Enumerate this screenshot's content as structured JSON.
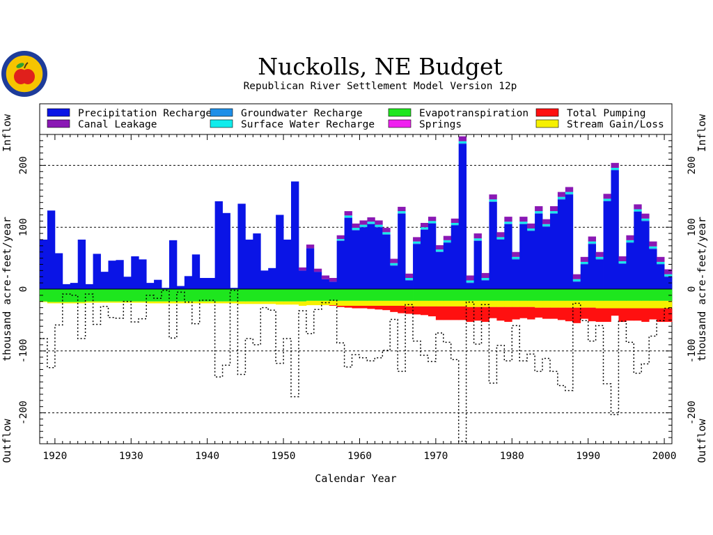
{
  "title": "Nuckolls, NE Budget",
  "subtitle": "Republican River Settlement Model Version 12p",
  "logo": {
    "icon": "apple-seal-icon",
    "color_ring": "#1e3c9a",
    "color_fill": "#f6c400",
    "color_apple": "#e0201c"
  },
  "axis": {
    "xlabel": "Calendar Year",
    "ylabel_left": "thousand  acre-feet/year",
    "ylabel_right": "thousand  acre-feet/year",
    "inflow": "Inflow",
    "outflow": "Outflow",
    "x_ticks": [
      "1920",
      "1930",
      "1940",
      "1950",
      "1960",
      "1970",
      "1980",
      "1990",
      "2000"
    ],
    "y_ticks": [
      "-200",
      "-100",
      "0",
      "100",
      "200"
    ]
  },
  "legend": [
    {
      "label": "Precipitation Recharge",
      "color": "#0a14e6"
    },
    {
      "label": "Groundwater Recharge",
      "color": "#1e8fe8"
    },
    {
      "label": "Evapotranspiration",
      "color": "#1ee61e"
    },
    {
      "label": "Total Pumping",
      "color": "#ff1010"
    },
    {
      "label": "Canal Leakage",
      "color": "#8a18b4"
    },
    {
      "label": "Surface Water Recharge",
      "color": "#10ecec"
    },
    {
      "label": "Springs",
      "color": "#f020f0"
    },
    {
      "label": "Stream Gain/Loss",
      "color": "#f6f000"
    }
  ],
  "chart_data": {
    "type": "area",
    "title": "Nuckolls, NE Budget",
    "subtitle": "Republican River Settlement Model Version 12p",
    "xlabel": "Calendar Year",
    "ylabel": "thousand  acre-feet/year",
    "xlim": [
      1918,
      2001
    ],
    "ylim": [
      -250,
      250
    ],
    "grid": "horizontal dashed at -200, -100, 100, 200",
    "legend_position": "top",
    "x": [
      1918,
      1919,
      1920,
      1921,
      1922,
      1923,
      1924,
      1925,
      1926,
      1927,
      1928,
      1929,
      1930,
      1931,
      1932,
      1933,
      1934,
      1935,
      1936,
      1937,
      1938,
      1939,
      1940,
      1941,
      1942,
      1943,
      1944,
      1945,
      1946,
      1947,
      1948,
      1949,
      1950,
      1951,
      1952,
      1953,
      1954,
      1955,
      1956,
      1957,
      1958,
      1959,
      1960,
      1961,
      1962,
      1963,
      1964,
      1965,
      1966,
      1967,
      1968,
      1969,
      1970,
      1971,
      1972,
      1973,
      1974,
      1975,
      1976,
      1977,
      1978,
      1979,
      1980,
      1981,
      1982,
      1983,
      1984,
      1985,
      1986,
      1987,
      1988,
      1989,
      1990,
      1991,
      1992,
      1993,
      1994,
      1995,
      1996,
      1997,
      1998,
      1999,
      2000
    ],
    "series": [
      {
        "name": "Precipitation Recharge",
        "color": "#0a14e6",
        "values": [
          80,
          127,
          58,
          8,
          10,
          80,
          8,
          57,
          28,
          46,
          47,
          20,
          53,
          48,
          10,
          15,
          2,
          79,
          5,
          21,
          56,
          18,
          18,
          142,
          123,
          2,
          138,
          80,
          90,
          30,
          34,
          120,
          80,
          174,
          30,
          66,
          28,
          16,
          12,
          78,
          115,
          95,
          100,
          105,
          100,
          88,
          38,
          122,
          14,
          73,
          96,
          106,
          60,
          75,
          103,
          235,
          10,
          78,
          14,
          141,
          80,
          105,
          48,
          105,
          94,
          122,
          101,
          122,
          145,
          153,
          12,
          40,
          73,
          48,
          142,
          192,
          41,
          75,
          125,
          110,
          65,
          40,
          20
        ]
      },
      {
        "name": "Groundwater Recharge",
        "color": "#1e8fe8",
        "values": [
          0,
          0,
          0,
          0,
          0,
          0,
          0,
          0,
          0,
          0,
          0,
          0,
          0,
          0,
          0,
          0,
          0,
          0,
          0,
          0,
          0,
          0,
          0,
          0,
          0,
          0,
          0,
          0,
          0,
          0,
          0,
          0,
          0,
          0,
          0,
          0,
          0,
          0,
          0,
          1,
          1,
          1,
          1,
          1,
          1,
          1,
          1,
          1,
          1,
          1,
          1,
          1,
          1,
          1,
          1,
          1,
          1,
          1,
          1,
          1,
          1,
          1,
          1,
          1,
          1,
          1,
          1,
          1,
          1,
          1,
          1,
          1,
          1,
          1,
          1,
          1,
          1,
          1,
          1,
          1,
          1,
          1,
          1
        ]
      },
      {
        "name": "Surface Water Recharge",
        "color": "#10ecec",
        "values": [
          0,
          0,
          0,
          0,
          0,
          0,
          0,
          0,
          0,
          0,
          0,
          0,
          0,
          0,
          0,
          0,
          0,
          0,
          0,
          0,
          0,
          0,
          0,
          0,
          0,
          0,
          0,
          0,
          0,
          0,
          0,
          0,
          0,
          0,
          0,
          0,
          0,
          0,
          0,
          2,
          3,
          3,
          3,
          3,
          3,
          3,
          3,
          3,
          3,
          3,
          3,
          3,
          3,
          3,
          3,
          3,
          3,
          3,
          3,
          3,
          3,
          3,
          3,
          3,
          3,
          3,
          3,
          3,
          3,
          3,
          3,
          3,
          3,
          3,
          3,
          3,
          3,
          3,
          3,
          3,
          3,
          3,
          3
        ]
      },
      {
        "name": "Springs",
        "color": "#f020f0",
        "values": [
          0,
          0,
          0,
          0,
          0,
          0,
          0,
          0,
          0,
          0,
          0,
          0,
          0,
          0,
          0,
          0,
          0,
          0,
          0,
          0,
          0,
          0,
          0,
          0,
          0,
          0,
          0,
          0,
          0,
          0,
          0,
          0,
          0,
          0,
          0,
          0,
          0,
          0,
          0,
          0,
          0,
          0,
          0,
          0,
          0,
          0,
          0,
          0,
          0,
          0,
          0,
          0,
          0,
          0,
          0,
          0,
          0,
          0,
          0,
          0,
          0,
          0,
          0,
          0,
          0,
          0,
          0,
          0,
          0,
          0,
          0,
          0,
          0,
          0,
          0,
          0,
          0,
          0,
          0,
          0,
          0,
          0,
          0
        ]
      },
      {
        "name": "Canal Leakage",
        "color": "#8a18b4",
        "values": [
          0,
          0,
          0,
          0,
          0,
          0,
          0,
          0,
          0,
          0,
          0,
          0,
          0,
          0,
          0,
          0,
          0,
          0,
          0,
          0,
          0,
          0,
          0,
          0,
          0,
          0,
          0,
          0,
          0,
          0,
          0,
          0,
          0,
          0,
          5,
          6,
          5,
          6,
          6,
          6,
          7,
          7,
          7,
          7,
          7,
          7,
          7,
          7,
          7,
          7,
          7,
          7,
          7,
          7,
          7,
          8,
          8,
          8,
          8,
          8,
          8,
          8,
          8,
          8,
          8,
          8,
          8,
          8,
          8,
          8,
          8,
          8,
          8,
          8,
          8,
          8,
          8,
          8,
          8,
          8,
          8,
          8,
          8
        ]
      },
      {
        "name": "Evapotranspiration",
        "color": "#1ee61e",
        "values": [
          -20,
          -21,
          -21,
          -21,
          -21,
          -21,
          -20,
          -20,
          -20,
          -20,
          -20,
          -20,
          -20,
          -20,
          -20,
          -20,
          -20,
          -20,
          -20,
          -20,
          -20,
          -20,
          -20,
          -20,
          -20,
          -20,
          -20,
          -20,
          -20,
          -20,
          -20,
          -20,
          -20,
          -20,
          -20,
          -19,
          -19,
          -19,
          -19,
          -19,
          -19,
          -19,
          -19,
          -19,
          -19,
          -19,
          -19,
          -19,
          -19,
          -19,
          -19,
          -19,
          -19,
          -19,
          -19,
          -19,
          -19,
          -19,
          -19,
          -19,
          -19,
          -19,
          -19,
          -19,
          -19,
          -19,
          -19,
          -19,
          -19,
          -19,
          -19,
          -19,
          -19,
          -19,
          -19,
          -19,
          -19,
          -19,
          -19,
          -19,
          -19,
          -19,
          -19
        ]
      },
      {
        "name": "Stream Gain/Loss",
        "color": "#f6f000",
        "values": [
          -1,
          -2,
          -2,
          -2,
          -2,
          -2,
          -2,
          -2,
          -2,
          -2,
          -2,
          -2,
          -2,
          -2,
          -3,
          -3,
          -3,
          -3,
          -3,
          -3,
          -3,
          -3,
          -3,
          -3,
          -3,
          -3,
          -4,
          -4,
          -4,
          -4,
          -4,
          -5,
          -5,
          -5,
          -7,
          -7,
          -7,
          -7,
          -7,
          -8,
          -8,
          -8,
          -8,
          -8,
          -8,
          -8,
          -8,
          -8,
          -9,
          -9,
          -9,
          -9,
          -9,
          -9,
          -9,
          -9,
          -10,
          -10,
          -10,
          -10,
          -10,
          -10,
          -10,
          -10,
          -10,
          -11,
          -11,
          -11,
          -11,
          -11,
          -11,
          -11,
          -11,
          -12,
          -12,
          -12,
          -12,
          -12,
          -12,
          -12,
          -12,
          -12,
          -12
        ]
      },
      {
        "name": "Total Pumping",
        "color": "#ff1010",
        "values": [
          0,
          0,
          0,
          0,
          0,
          0,
          0,
          0,
          0,
          0,
          0,
          0,
          0,
          0,
          0,
          0,
          0,
          0,
          0,
          0,
          0,
          0,
          0,
          0,
          0,
          0,
          0,
          0,
          0,
          0,
          0,
          0,
          0,
          0,
          0,
          0,
          0,
          0,
          -1,
          -2,
          -3,
          -4,
          -4,
          -5,
          -6,
          -7,
          -10,
          -12,
          -12,
          -13,
          -14,
          -16,
          -22,
          -22,
          -22,
          -22,
          -24,
          -22,
          -24,
          -18,
          -22,
          -24,
          -20,
          -18,
          -20,
          -16,
          -18,
          -18,
          -20,
          -22,
          -25,
          -18,
          -22,
          -22,
          -22,
          -12,
          -22,
          -20,
          -20,
          -22,
          -18,
          -22,
          -22
        ]
      },
      {
        "name": "Total outflow (dotted)",
        "color": "#000000",
        "values": [
          -80,
          -127,
          -58,
          -8,
          -10,
          -80,
          -8,
          -57,
          -28,
          -46,
          -47,
          -20,
          -53,
          -48,
          -10,
          -15,
          -2,
          -79,
          -5,
          -21,
          -56,
          -18,
          -18,
          -142,
          -123,
          -2,
          -138,
          -80,
          -90,
          -30,
          -34,
          -120,
          -80,
          -174,
          -35,
          -72,
          -33,
          -22,
          -18,
          -87,
          -126,
          -106,
          -111,
          -116,
          -111,
          -99,
          -49,
          -133,
          -25,
          -84,
          -107,
          -117,
          -71,
          -86,
          -114,
          -246,
          -21,
          -89,
          -25,
          -152,
          -91,
          -116,
          -59,
          -116,
          -105,
          -133,
          -112,
          -133,
          -156,
          -164,
          -23,
          -51,
          -84,
          -59,
          -153,
          -203,
          -52,
          -86,
          -136,
          -121,
          -76,
          -51,
          -31
        ]
      }
    ]
  }
}
